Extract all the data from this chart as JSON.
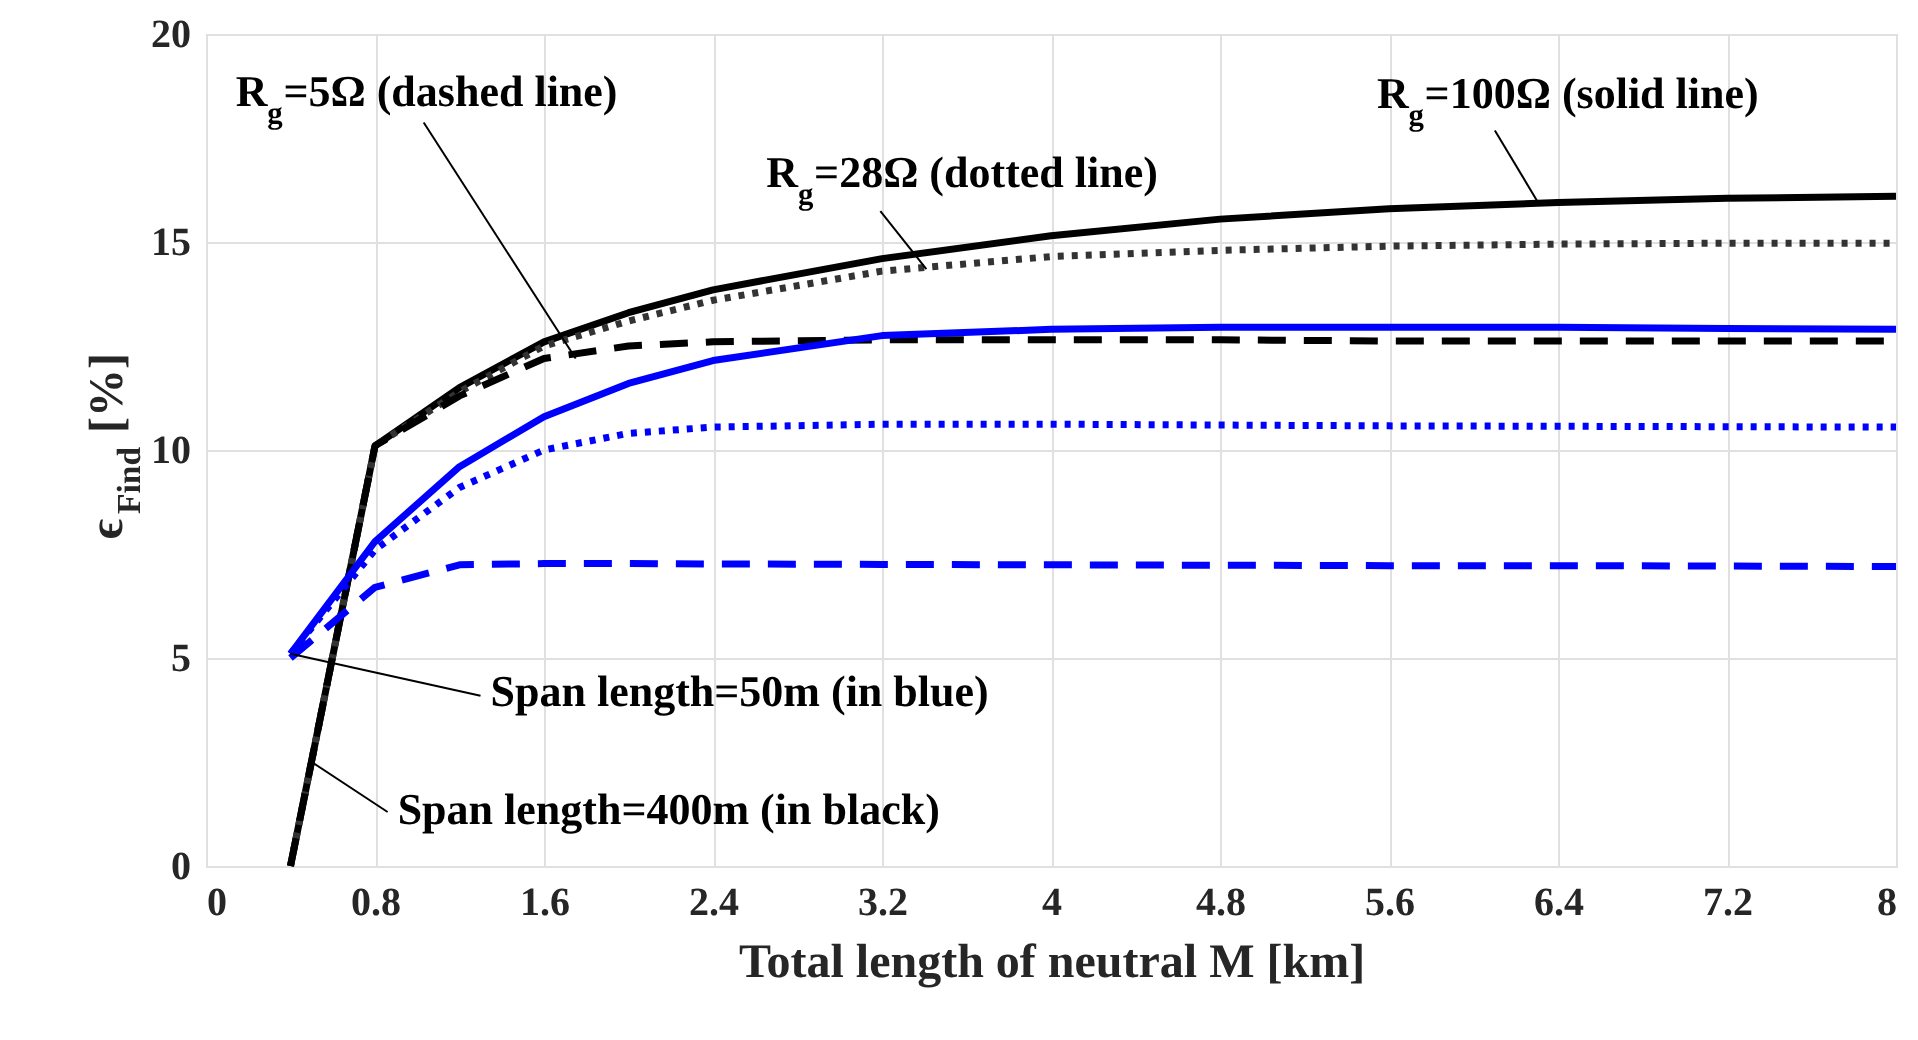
{
  "chart_data": {
    "type": "line",
    "xlabel": "Total length of neutral M [km]",
    "ylabel": "ϵ$_{Find}$ [%]",
    "xlim": [
      0,
      8
    ],
    "xticks": [
      0,
      0.8,
      1.6,
      2.4,
      3.2,
      4,
      4.8,
      5.6,
      6.4,
      7.2,
      8
    ],
    "ylim": [
      0,
      20
    ],
    "yticks": [
      0,
      5,
      10,
      15,
      20
    ],
    "grid": true,
    "marker": "none",
    "series": [
      {
        "color": "#000000",
        "line_style": "solid",
        "x": [
          0.4,
          0.8,
          1.2,
          1.6,
          2.0,
          2.4,
          3.2,
          4.0,
          4.8,
          5.6,
          6.4,
          7.2,
          8
        ],
        "values": [
          0,
          10.1,
          11.5,
          12.6,
          13.3,
          13.85,
          14.6,
          15.15,
          15.55,
          15.8,
          15.95,
          16.05,
          16.1
        ]
      },
      {
        "color": "#333333",
        "line_style": "dotted",
        "x": [
          0.4,
          0.8,
          1.2,
          1.6,
          2.0,
          2.4,
          3.2,
          4.0,
          4.8,
          5.6,
          6.4,
          7.2,
          8
        ],
        "values": [
          0,
          10.1,
          11.4,
          12.5,
          13.1,
          13.6,
          14.3,
          14.65,
          14.8,
          14.9,
          14.95,
          14.97,
          14.97
        ]
      },
      {
        "color": "#000000",
        "line_style": "dashed",
        "x": [
          0.4,
          0.8,
          1.2,
          1.6,
          2.0,
          2.4,
          3.2,
          4.0,
          4.8,
          5.6,
          6.4,
          7.2,
          8
        ],
        "values": [
          0,
          10.1,
          11.3,
          12.2,
          12.5,
          12.6,
          12.65,
          12.65,
          12.65,
          12.62,
          12.62,
          12.62,
          12.62
        ]
      },
      {
        "color": "#0000ff",
        "line_style": "solid",
        "x": [
          0.4,
          0.8,
          1.2,
          1.6,
          2.0,
          2.4,
          3.2,
          4.0,
          4.8,
          5.6,
          6.4,
          7.2,
          8
        ],
        "values": [
          5.1,
          7.8,
          9.6,
          10.8,
          11.6,
          12.15,
          12.75,
          12.9,
          12.95,
          12.95,
          12.95,
          12.92,
          12.9
        ]
      },
      {
        "color": "#0000ff",
        "line_style": "dotted",
        "x": [
          0.4,
          0.8,
          1.2,
          1.6,
          2.0,
          2.4,
          3.2,
          4.0,
          4.8,
          5.6,
          6.4,
          7.2,
          8
        ],
        "values": [
          5.1,
          7.6,
          9.1,
          10.0,
          10.4,
          10.55,
          10.62,
          10.62,
          10.6,
          10.58,
          10.57,
          10.56,
          10.55
        ]
      },
      {
        "color": "#0000ff",
        "line_style": "dashed",
        "x": [
          0.4,
          0.8,
          1.2,
          1.6,
          2.0,
          2.4,
          3.2,
          4.0,
          4.8,
          5.6,
          6.4,
          7.2,
          8
        ],
        "values": [
          5.0,
          6.7,
          7.24,
          7.27,
          7.27,
          7.26,
          7.25,
          7.24,
          7.23,
          7.22,
          7.22,
          7.21,
          7.2
        ]
      }
    ],
    "annotations": [
      {
        "text": "R$_{g}$=5Ω (dashed line)",
        "x": 1.75,
        "y": 12.2
      },
      {
        "text": "R$_{g}$=28Ω (dotted line)",
        "x": 3.41,
        "y": 14.35
      },
      {
        "text": "R$_{g}$=100Ω (solid line)",
        "x": 6.3,
        "y": 16.0
      },
      {
        "text": "Span length=50m (in blue)",
        "x": 0.4,
        "y": 5.1
      },
      {
        "text": "Span length=400m (in black)",
        "x": 0.5,
        "y": 2.5
      }
    ]
  }
}
